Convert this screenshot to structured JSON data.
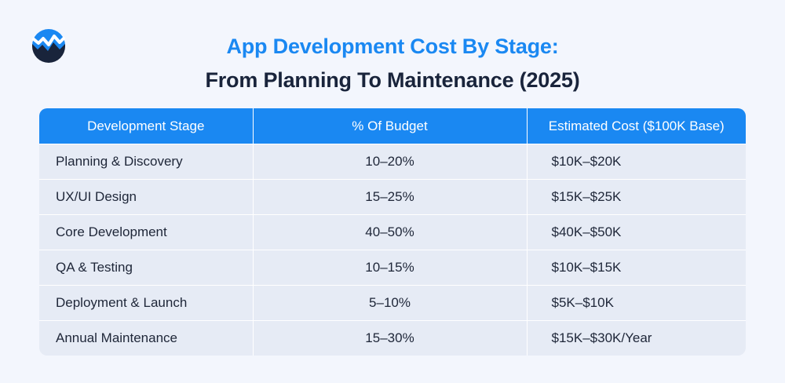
{
  "logo": {
    "icon": "wave-logo-icon",
    "colors": {
      "circle": "#1a88f2",
      "wave": "#19243b"
    }
  },
  "title": {
    "line1": "App Development Cost By Stage:",
    "line2": "From Planning To Maintenance (2025)"
  },
  "colors": {
    "accent": "#1a88f2",
    "heading_dark": "#19243b",
    "background": "#f3f6fd",
    "row_background": "#e6ebf5"
  },
  "table": {
    "headers": [
      "Development Stage",
      "% Of Budget",
      "Estimated Cost ($100K Base)"
    ],
    "rows": [
      [
        "Planning & Discovery",
        "10–20%",
        "$10K–$20K"
      ],
      [
        "UX/UI Design",
        "15–25%",
        "$15K–$25K"
      ],
      [
        "Core Development",
        "40–50%",
        "$40K–$50K"
      ],
      [
        "QA & Testing",
        "10–15%",
        "$10K–$15K"
      ],
      [
        "Deployment & Launch",
        "5–10%",
        "$5K–$10K"
      ],
      [
        "Annual Maintenance",
        "15–30%",
        "$15K–$30K/Year"
      ]
    ]
  }
}
